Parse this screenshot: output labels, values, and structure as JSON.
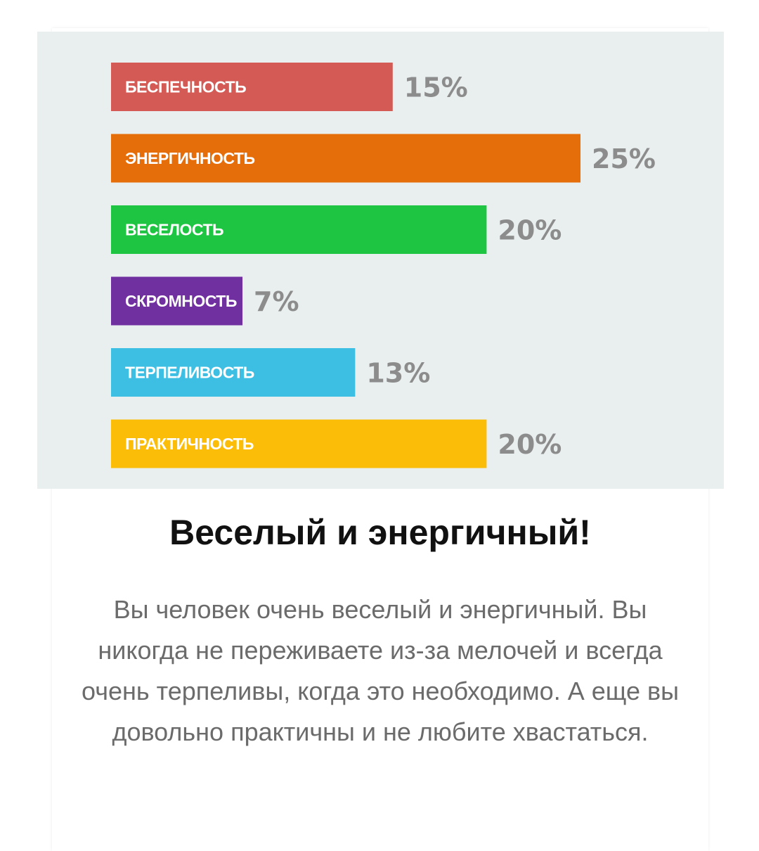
{
  "result": {
    "title": "Веселый и энергичный!",
    "description": "Вы человек очень веселый и энергичный. Вы никогда не переживаете из-за мелочей и всегда очень терпеливы, когда это необходимо. А еще вы довольно практичны и не любите хвастаться."
  },
  "chart_data": {
    "type": "bar",
    "orientation": "horizontal",
    "categories": [
      "БЕСПЕЧНОСТЬ",
      "ЭНЕРГИЧНОСТЬ",
      "ВЕСЕЛОСТЬ",
      "СКРОМНОСТЬ",
      "ТЕРПЕЛИВОСТЬ",
      "ПРАКТИЧНОСТЬ"
    ],
    "values": [
      15,
      25,
      20,
      7,
      13,
      20
    ],
    "value_labels": [
      "15%",
      "25%",
      "20%",
      "7%",
      "13%",
      "20%"
    ],
    "colors": [
      "#d45b55",
      "#e56e0b",
      "#1ec543",
      "#7030a0",
      "#3dbfe3",
      "#fbbd08"
    ],
    "background": "#e9eeee",
    "value_label_color": "#8c8c8c",
    "xlim": [
      0,
      25
    ],
    "grid": false,
    "legend": "none",
    "title": "",
    "xlabel": "",
    "ylabel": ""
  }
}
